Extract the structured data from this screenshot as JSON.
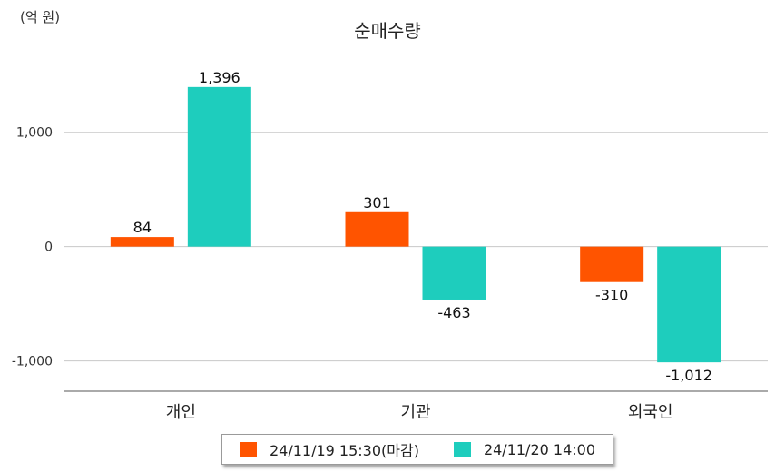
{
  "unit_label": "(억 원)",
  "chart_data": {
    "type": "bar",
    "title": "순매수량",
    "categories": [
      "개인",
      "기관",
      "외국인"
    ],
    "series": [
      {
        "name": "24/11/19 15:30(마감)",
        "values": [
          84,
          301,
          -310
        ],
        "color": "#ff5400"
      },
      {
        "name": "24/11/20 14:00",
        "values": [
          1396,
          -463,
          -1012
        ],
        "color": "#1ecdbd"
      }
    ],
    "value_labels": [
      [
        "84",
        "301",
        "-310"
      ],
      [
        "1,396",
        "-463",
        "-1,012"
      ]
    ],
    "yticks": [
      1000,
      0,
      -1000
    ],
    "ytick_labels": [
      "1,000",
      "0",
      "-1,000"
    ],
    "ylim": [
      -1265,
      1760
    ],
    "grid": true,
    "legend_position": "bottom"
  }
}
